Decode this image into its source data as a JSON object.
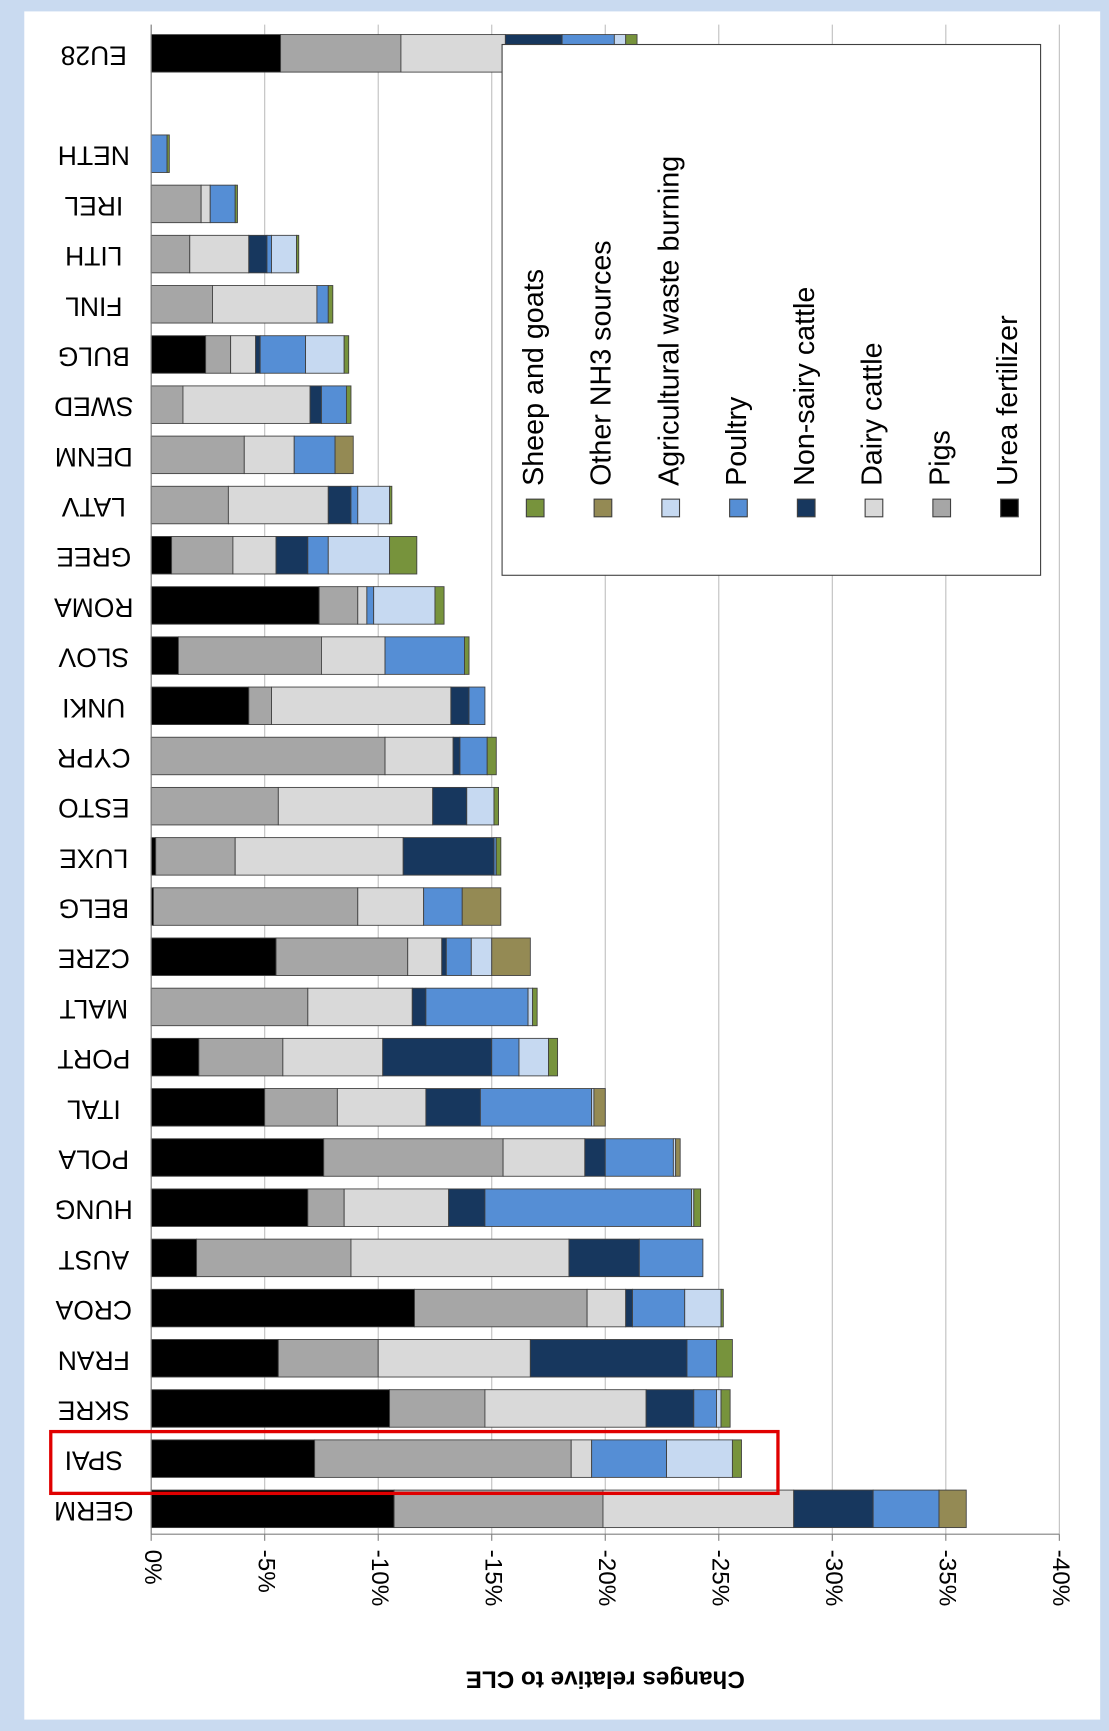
{
  "chart_data": {
    "type": "stacked-bar",
    "x_axis_label": "Changes relative to CLE",
    "categories": [
      "EU28",
      null,
      "NETH",
      "IREL",
      "LITH",
      "FINL",
      "BULG",
      "SWED",
      "DENM",
      "LATV",
      "GREE",
      "ROMA",
      "SLOV",
      "UNKI",
      "CYPR",
      "ESTO",
      "LUXE",
      "BELG",
      "CZRE",
      "MALT",
      "PORT",
      "ITAL",
      "POLA",
      "HUNG",
      "AUST",
      "CROA",
      "FRAN",
      "SKRE",
      "SPAI",
      "GERM"
    ],
    "series": [
      {
        "name": "Urea fertilizer",
        "color": "#000000",
        "values": [
          -5.7,
          null,
          0,
          0,
          0,
          0,
          -2.4,
          0,
          0,
          0,
          -0.9,
          -7.4,
          -1.2,
          -4.3,
          0,
          0,
          -0.2,
          -0.1,
          -5.5,
          0,
          -2.1,
          -5.0,
          -7.6,
          -6.9,
          -2.0,
          -11.6,
          -5.6,
          -10.5,
          -7.2,
          -10.7
        ]
      },
      {
        "name": "Pigs",
        "color": "#a6a6a6",
        "values": [
          -5.3,
          null,
          0,
          -2.2,
          -1.7,
          -2.7,
          -1.1,
          -1.4,
          -4.1,
          -3.4,
          -2.7,
          -1.7,
          -6.3,
          -1.0,
          -10.3,
          -5.6,
          -3.5,
          -9.0,
          -5.8,
          -6.9,
          -3.7,
          -3.2,
          -7.9,
          -1.6,
          -6.8,
          -7.6,
          -4.4,
          -4.2,
          -11.3,
          -9.2
        ]
      },
      {
        "name": "Dairy cattle",
        "color": "#d9d9d9",
        "values": [
          -4.6,
          null,
          0,
          -0.4,
          -2.6,
          -4.6,
          -1.1,
          -5.6,
          -2.2,
          -4.4,
          -1.9,
          -0.4,
          -2.8,
          -7.9,
          -3.0,
          -6.8,
          -7.4,
          -2.9,
          -1.5,
          -4.6,
          -4.4,
          -3.9,
          -3.6,
          -4.6,
          -9.6,
          -1.7,
          -6.7,
          -7.1,
          -0.9,
          -8.4
        ]
      },
      {
        "name": "Non-sairy cattle",
        "color": "#17375e",
        "values": [
          -2.5,
          null,
          0,
          0,
          -0.8,
          0,
          -0.2,
          -0.5,
          0,
          -1.0,
          -1.4,
          0,
          0,
          -0.8,
          -0.3,
          -1.5,
          -4.0,
          0,
          -0.2,
          -0.6,
          -4.8,
          -2.4,
          -0.9,
          -1.6,
          -3.1,
          -0.3,
          -6.9,
          -2.1,
          0,
          -3.5
        ]
      },
      {
        "name": "Poultry",
        "color": "#558ed5",
        "values": [
          -2.3,
          null,
          -0.7,
          -1.1,
          -0.2,
          -0.5,
          -2.0,
          -1.1,
          -1.8,
          -0.3,
          -0.9,
          -0.3,
          -3.5,
          -0.7,
          -1.2,
          0,
          -0.1,
          -1.7,
          -1.1,
          -4.5,
          -1.2,
          -4.9,
          -3.0,
          -9.1,
          -2.8,
          -2.3,
          -1.3,
          -1.0,
          -3.3,
          -2.9
        ]
      },
      {
        "name": "Agricultural waste burning",
        "color": "#c6d9f1",
        "values": [
          -0.5,
          null,
          0,
          0,
          -1.1,
          0,
          -1.7,
          0,
          0,
          -1.4,
          -2.7,
          -2.7,
          0,
          0,
          0,
          -1.2,
          0,
          0,
          -0.9,
          -0.2,
          -1.3,
          -0.1,
          -0.1,
          -0.1,
          0,
          -1.6,
          0,
          -0.2,
          -2.9,
          0
        ]
      },
      {
        "name": "Other NH3 sources",
        "color": "#948a54",
        "values": [
          0,
          null,
          0,
          0,
          0,
          0,
          0,
          0,
          -0.8,
          0,
          0,
          0,
          0,
          0,
          0,
          0,
          0,
          -1.7,
          -1.7,
          0,
          0,
          -0.5,
          -0.2,
          0,
          0,
          0,
          0,
          0,
          0,
          -1.2
        ]
      },
      {
        "name": "Sheep and goats",
        "color": "#77933c",
        "values": [
          -0.5,
          null,
          -0.1,
          -0.1,
          -0.1,
          -0.2,
          -0.2,
          -0.2,
          0,
          -0.1,
          -1.2,
          -0.4,
          -0.2,
          0,
          -0.4,
          -0.2,
          -0.2,
          0,
          0,
          -0.2,
          -0.4,
          0,
          0,
          -0.3,
          0,
          -0.1,
          -0.7,
          -0.4,
          -0.4,
          0
        ]
      }
    ],
    "xlim": [
      0,
      -40
    ],
    "xticks": [
      {
        "value": 0,
        "label": "0%"
      },
      {
        "value": -5,
        "label": "-5%"
      },
      {
        "value": -10,
        "label": "-10%"
      },
      {
        "value": -15,
        "label": "-15%"
      },
      {
        "value": -20,
        "label": "-20%"
      },
      {
        "value": -25,
        "label": "-25%"
      },
      {
        "value": -30,
        "label": "-30%"
      },
      {
        "value": -35,
        "label": "-35%"
      },
      {
        "value": -40,
        "label": "-40%"
      }
    ],
    "grid": true,
    "legend": "upper right"
  }
}
